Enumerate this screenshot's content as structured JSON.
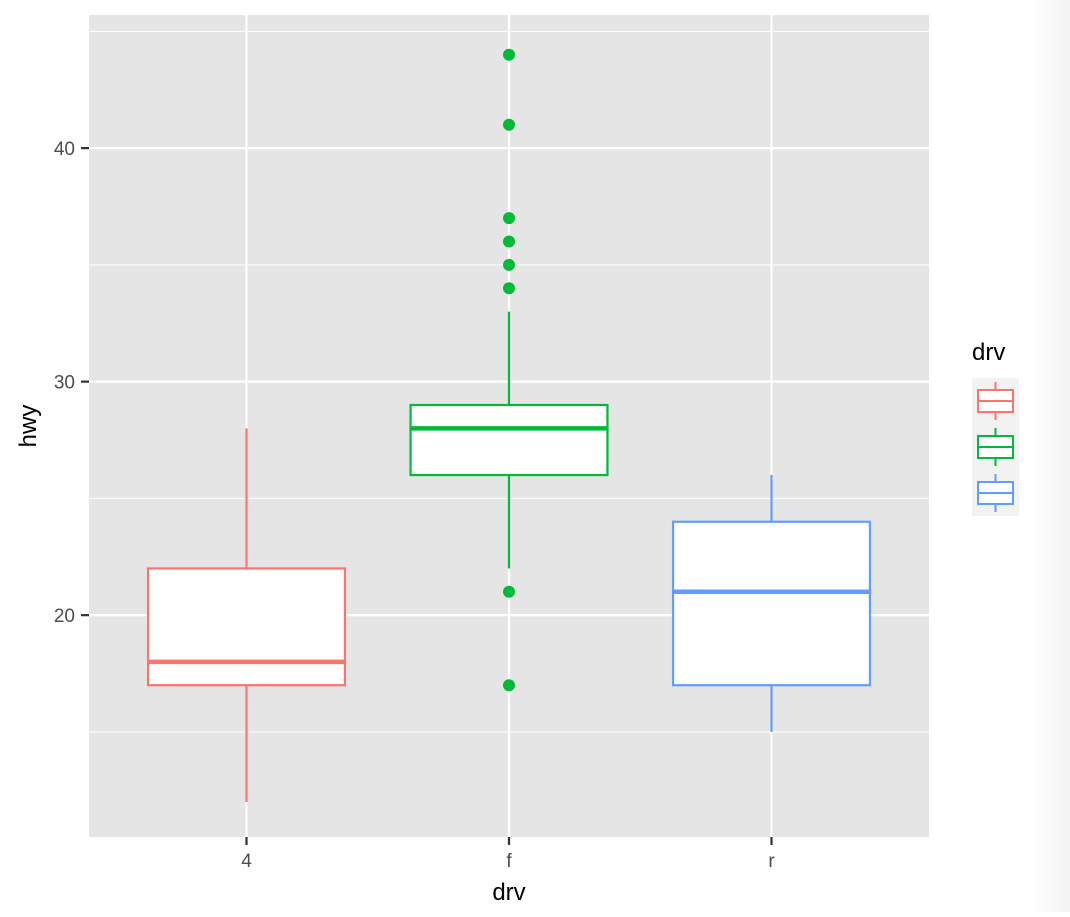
{
  "chart_data": {
    "type": "boxplot",
    "xlabel": "drv",
    "ylabel": "hwy",
    "categories": [
      "4",
      "f",
      "r"
    ],
    "ylim": [
      10.5,
      45.7
    ],
    "y_ticks": [
      20,
      30,
      40
    ],
    "y_tick_labels": [
      "20",
      "30",
      "40"
    ],
    "grid": true,
    "legend": {
      "title": "drv",
      "position": "right",
      "entries": [
        "4",
        "f",
        "r"
      ]
    },
    "colors": {
      "4": "#F8766D",
      "f": "#00BA38",
      "r": "#619CFF",
      "panel": "#E5E5E5"
    },
    "boxes": [
      {
        "category": "4",
        "whisker_low": 12,
        "q1": 17,
        "median": 18,
        "q3": 22,
        "whisker_high": 28,
        "outliers": []
      },
      {
        "category": "f",
        "whisker_low": 22,
        "q1": 26,
        "median": 28,
        "q3": 29,
        "whisker_high": 33,
        "outliers": [
          17,
          21,
          34,
          35,
          36,
          37,
          41,
          44
        ]
      },
      {
        "category": "r",
        "whisker_low": 15,
        "q1": 17,
        "median": 21,
        "q3": 24,
        "whisker_high": 26,
        "outliers": []
      }
    ]
  }
}
